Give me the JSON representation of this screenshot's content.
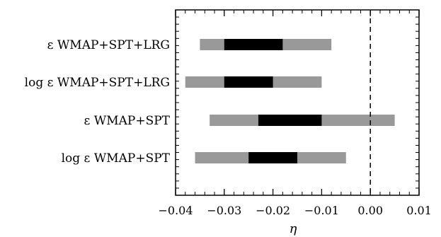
{
  "chart_data": {
    "type": "bar",
    "orientation": "horizontal-interval",
    "title": "",
    "xlabel": "η",
    "ylabel": "",
    "xlim": [
      -0.04,
      0.01
    ],
    "x_ticks": [
      -0.04,
      -0.03,
      -0.02,
      -0.01,
      0.0,
      0.01
    ],
    "x_tick_labels": [
      "−0.04",
      "−0.03",
      "−0.02",
      "−0.01",
      "0.00",
      "0.01"
    ],
    "grid": false,
    "reference_line": {
      "x": 0.0,
      "style": "dashed"
    },
    "colors": {
      "outer_interval": "#999999",
      "inner_interval": "#000000"
    },
    "rows": [
      {
        "label": "ε WMAP+SPT+LRG",
        "outer": [
          -0.035,
          -0.008
        ],
        "inner": [
          -0.03,
          -0.018
        ]
      },
      {
        "label": "log ε WMAP+SPT+LRG",
        "outer": [
          -0.038,
          -0.01
        ],
        "inner": [
          -0.03,
          -0.02
        ]
      },
      {
        "label": "ε WMAP+SPT",
        "outer": [
          -0.033,
          0.005
        ],
        "inner": [
          -0.023,
          -0.01
        ]
      },
      {
        "label": "log ε WMAP+SPT",
        "outer": [
          -0.036,
          -0.005
        ],
        "inner": [
          -0.025,
          -0.015
        ]
      }
    ]
  }
}
